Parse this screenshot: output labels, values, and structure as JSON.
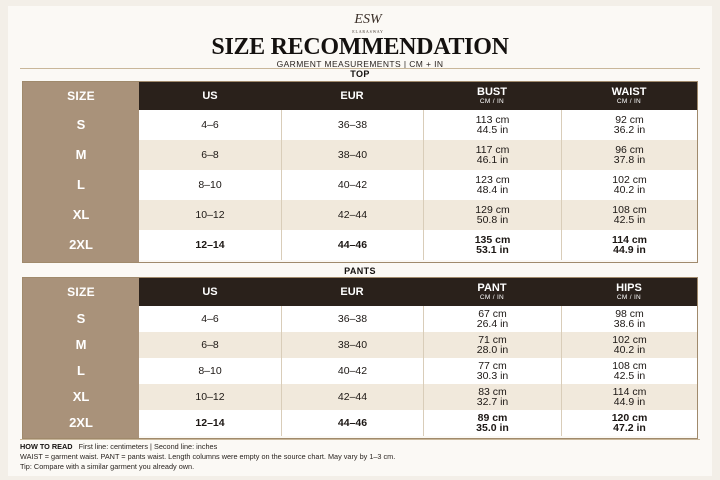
{
  "header": {
    "logo_mark": "ESW",
    "logo_word": "ELARASWAY",
    "title": "SIZE RECOMMENDATION",
    "subtitle": "GARMENT MEASUREMENTS | CM + IN"
  },
  "top": {
    "label": "TOP",
    "columns": {
      "size": "SIZE",
      "us": "US",
      "eur": "EUR",
      "c3": "BUST",
      "c3_unit": "CM / IN",
      "c4": "WAIST",
      "c4_unit": "CM / IN"
    },
    "rows": [
      {
        "size": "S",
        "us": "4–6",
        "eur": "36–38",
        "c3_cm": "113 cm",
        "c3_in": "44.5 in",
        "c4_cm": "92 cm",
        "c4_in": "36.2 in"
      },
      {
        "size": "M",
        "us": "6–8",
        "eur": "38–40",
        "c3_cm": "117 cm",
        "c3_in": "46.1 in",
        "c4_cm": "96 cm",
        "c4_in": "37.8 in"
      },
      {
        "size": "L",
        "us": "8–10",
        "eur": "40–42",
        "c3_cm": "123 cm",
        "c3_in": "48.4 in",
        "c4_cm": "102 cm",
        "c4_in": "40.2 in"
      },
      {
        "size": "XL",
        "us": "10–12",
        "eur": "42–44",
        "c3_cm": "129 cm",
        "c3_in": "50.8 in",
        "c4_cm": "108 cm",
        "c4_in": "42.5 in"
      },
      {
        "size": "2XL",
        "us": "12–14",
        "eur": "44–46",
        "c3_cm": "135 cm",
        "c3_in": "53.1 in",
        "c4_cm": "114 cm",
        "c4_in": "44.9 in"
      }
    ]
  },
  "pants": {
    "label": "PANTS",
    "columns": {
      "size": "SIZE",
      "us": "US",
      "eur": "EUR",
      "c3": "PANT",
      "c3_unit": "CM / IN",
      "c4": "HIPS",
      "c4_unit": "CM / IN"
    },
    "rows": [
      {
        "size": "S",
        "us": "4–6",
        "eur": "36–38",
        "c3_cm": "67 cm",
        "c3_in": "26.4 in",
        "c4_cm": "98 cm",
        "c4_in": "38.6 in"
      },
      {
        "size": "M",
        "us": "6–8",
        "eur": "38–40",
        "c3_cm": "71 cm",
        "c3_in": "28.0 in",
        "c4_cm": "102 cm",
        "c4_in": "40.2 in"
      },
      {
        "size": "L",
        "us": "8–10",
        "eur": "40–42",
        "c3_cm": "77 cm",
        "c3_in": "30.3 in",
        "c4_cm": "108 cm",
        "c4_in": "42.5 in"
      },
      {
        "size": "XL",
        "us": "10–12",
        "eur": "42–44",
        "c3_cm": "83 cm",
        "c3_in": "32.7 in",
        "c4_cm": "114 cm",
        "c4_in": "44.9 in"
      },
      {
        "size": "2XL",
        "us": "12–14",
        "eur": "44–46",
        "c3_cm": "89 cm",
        "c3_in": "35.0 in",
        "c4_cm": "120 cm",
        "c4_in": "47.2 in"
      }
    ]
  },
  "footer": {
    "how_to_read": "HOW TO READ",
    "lines_note": "First line: centimeters  |  Second line: inches",
    "line2": "WAIST = garment waist. PANT = pants waist. Length columns were empty on the source chart. May vary by 1–3 cm.",
    "line3": "Tip: Compare with a similar garment you already own."
  },
  "colors": {
    "size_column": "#a9927a",
    "header_dark": "#2a211b",
    "row_alt": "#f1e9dc",
    "page_bg": "#f3efe8"
  }
}
